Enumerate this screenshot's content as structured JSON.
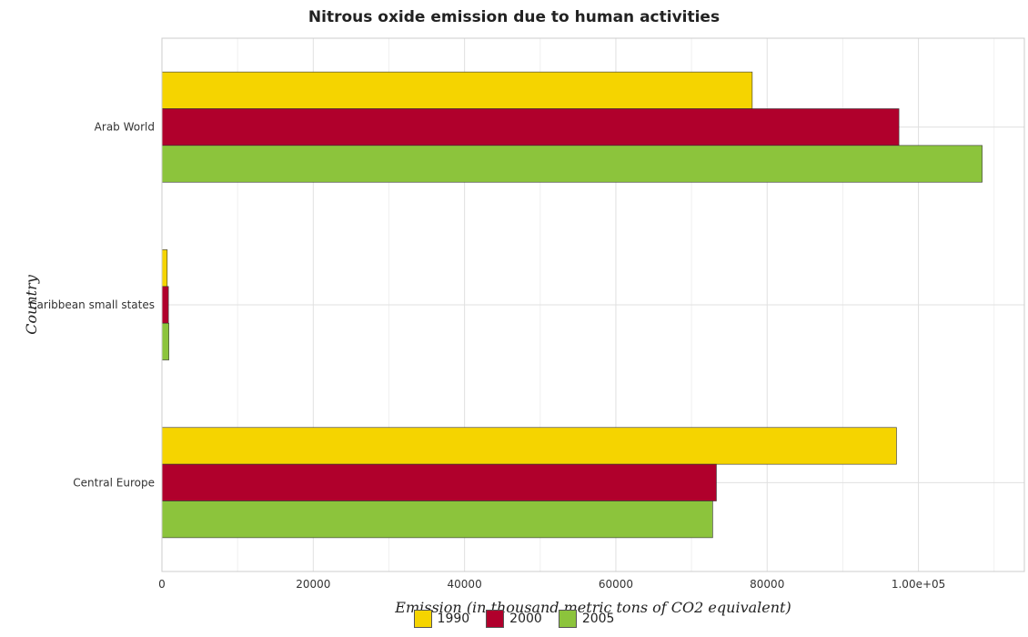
{
  "chart_data": {
    "type": "bar",
    "orientation": "horizontal",
    "title": "Nitrous oxide emission due to human activities",
    "xlabel": "Emission (in thousand metric tons of CO2 equivalent)",
    "ylabel": "Country",
    "categories": [
      "Arab World",
      "Caribbean small states",
      "Central Europe"
    ],
    "series": [
      {
        "name": "1990",
        "color": "#f5d400",
        "values": [
          78030,
          700,
          97100
        ]
      },
      {
        "name": "2000",
        "color": "#b0002c",
        "values": [
          97420,
          860,
          73290
        ]
      },
      {
        "name": "2005",
        "color": "#8cc43c",
        "values": [
          108420,
          920,
          72800
        ]
      }
    ],
    "xlim": [
      0,
      114000
    ],
    "xticks": [
      0,
      20000,
      40000,
      60000,
      80000,
      100000
    ],
    "xtick_labels": [
      "0",
      "20000",
      "40000",
      "60000",
      "80000",
      "1.00e+05"
    ],
    "grid": true,
    "legend_position": "bottom"
  }
}
